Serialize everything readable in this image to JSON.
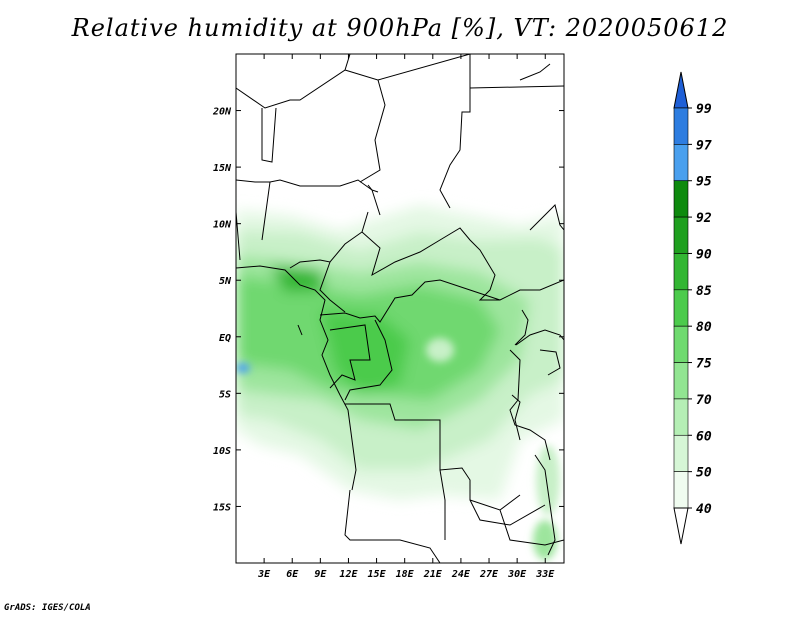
{
  "title": "Relative humidity at 900hPa [%], VT: 2020050612",
  "credit": "GrADS: IGES/COLA",
  "map": {
    "lon_ticks": [
      "3E",
      "6E",
      "9E",
      "12E",
      "15E",
      "18E",
      "21E",
      "24E",
      "27E",
      "30E",
      "33E"
    ],
    "lat_ticks": [
      "20N",
      "15N",
      "10N",
      "5N",
      "EQ",
      "5S",
      "10S",
      "15S"
    ],
    "lon_range": [
      0,
      35
    ],
    "lat_range": [
      -20,
      25
    ]
  },
  "colorbar": {
    "levels": [
      "99",
      "97",
      "95",
      "92",
      "90",
      "85",
      "80",
      "75",
      "70",
      "60",
      "50",
      "40"
    ],
    "colors": [
      "#1e5fd6",
      "#2e7de0",
      "#4aa0ee",
      "#0e8a0e",
      "#1fa01f",
      "#33b633",
      "#4ccb4c",
      "#6fda6f",
      "#92e592",
      "#b5efb5",
      "#d6f6d6",
      "#f0fcf0"
    ]
  }
}
